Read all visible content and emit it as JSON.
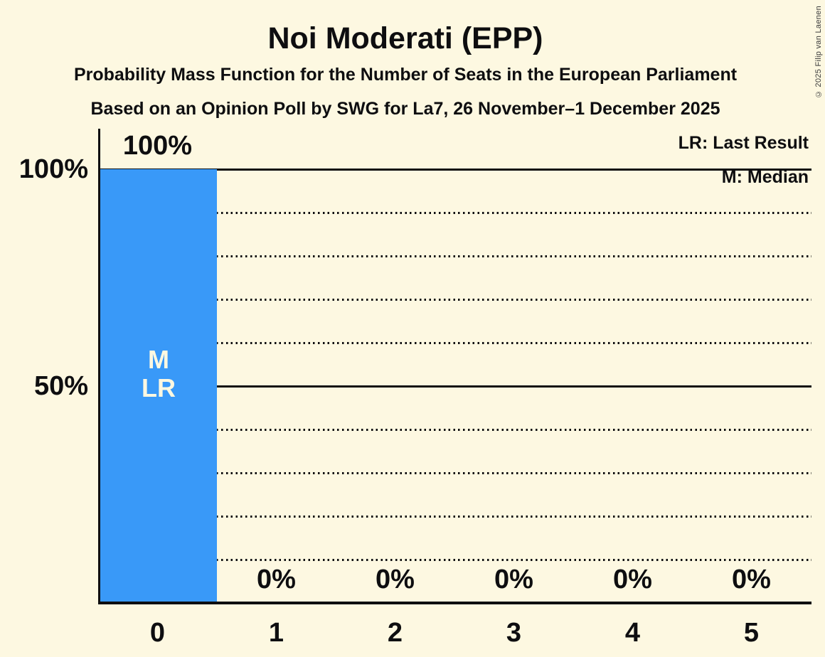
{
  "title": "Noi Moderati (EPP)",
  "subtitle1": "Probability Mass Function for the Number of Seats in the European Parliament",
  "subtitle2": "Based on an Opinion Poll by SWG for La7, 26 November–1 December 2025",
  "copyright": "© 2025 Filip van Laenen",
  "legend": {
    "lr": "LR: Last Result",
    "m": "M: Median"
  },
  "y_axis": {
    "ticks": [
      {
        "label": "100%",
        "value": 100
      },
      {
        "label": "50%",
        "value": 50
      }
    ]
  },
  "chart_data": {
    "type": "bar",
    "title": "Noi Moderati (EPP)",
    "categories": [
      "0",
      "1",
      "2",
      "3",
      "4",
      "5"
    ],
    "values": [
      100,
      0,
      0,
      0,
      0,
      0
    ],
    "value_labels": [
      "100%",
      "0%",
      "0%",
      "0%",
      "0%",
      "0%"
    ],
    "bar_annotations": {
      "0": [
        "M",
        "LR"
      ]
    },
    "ylim": [
      0,
      100
    ],
    "gridlines": {
      "solid": [
        100,
        50
      ],
      "dotted": [
        90,
        80,
        70,
        60,
        40,
        30,
        20,
        10
      ]
    },
    "legend_position": "top-right",
    "colors": {
      "bar": "#3999F8",
      "background": "#FDF8E1",
      "text": "#0E0E10",
      "bar_label": "#FDF8E1"
    }
  }
}
